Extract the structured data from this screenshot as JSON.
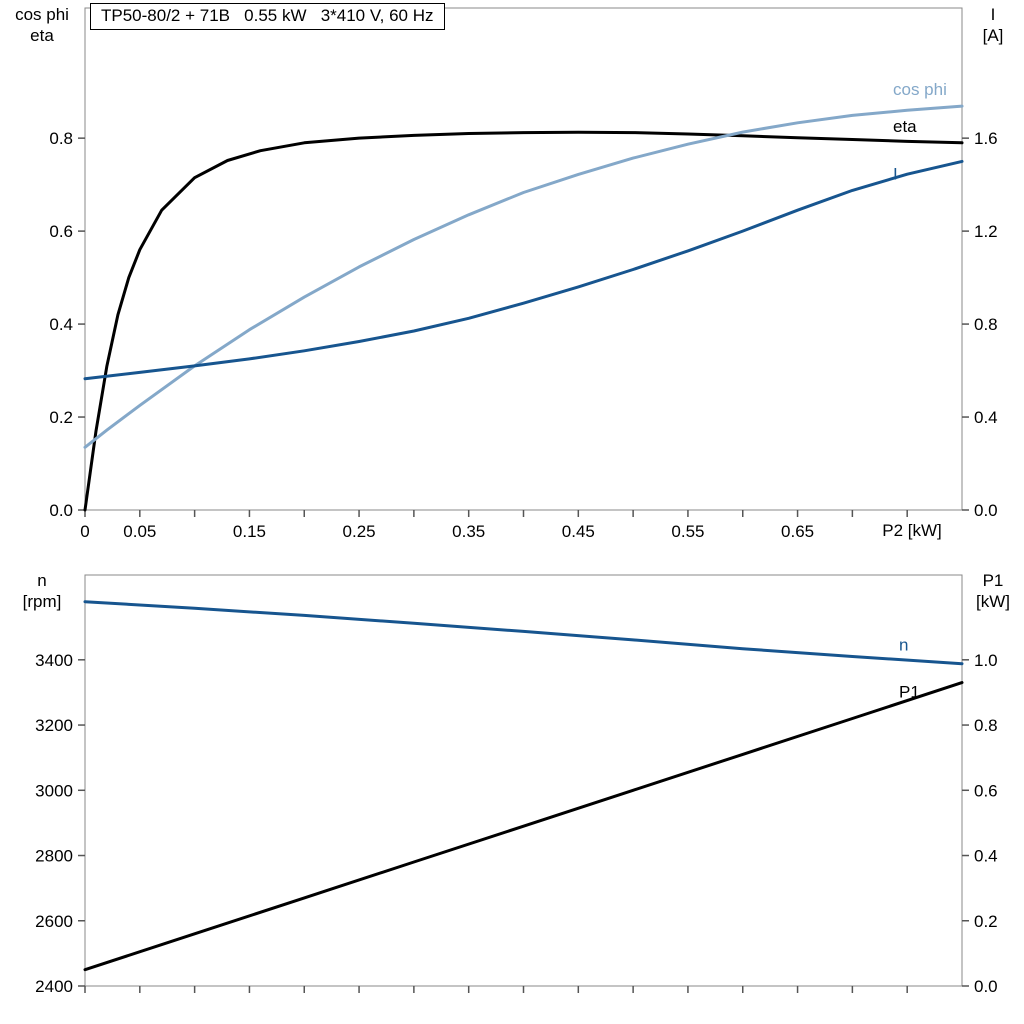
{
  "title_box": {
    "text": "TP50-80/2 + 71B   0.55 kW   3*410 V, 60 Hz"
  },
  "axis_labels": {
    "top_left": [
      "cos phi",
      "eta"
    ],
    "top_right": [
      "I",
      "[A]"
    ],
    "bottom_left": [
      "n",
      "[rpm]"
    ],
    "bottom_right": [
      "P1",
      "[kW]"
    ],
    "top_x_axis": "P2 [kW]"
  },
  "colors": {
    "black": "#000000",
    "dark_blue": "#17558f",
    "light_blue": "#84a8c9",
    "axis": "#888888",
    "tick": "#555555",
    "text": "#000000",
    "background": "#ffffff"
  },
  "chart_data": [
    {
      "type": "line",
      "title": "TP50-80/2 + 71B   0.55 kW   3*410 V, 60 Hz",
      "x_axis": {
        "label": "P2 [kW]",
        "min": 0,
        "max": 0.8,
        "tick_values": [
          0,
          0.05,
          0.1,
          0.15,
          0.2,
          0.25,
          0.3,
          0.35,
          0.4,
          0.45,
          0.5,
          0.55,
          0.6,
          0.65,
          0.7,
          0.75
        ],
        "tick_labels": [
          {
            "value": 0,
            "label": "0"
          },
          {
            "value": 0.05,
            "label": "0.05"
          },
          {
            "value": 0.15,
            "label": "0.15"
          },
          {
            "value": 0.25,
            "label": "0.25"
          },
          {
            "value": 0.35,
            "label": "0.35"
          },
          {
            "value": 0.45,
            "label": "0.45"
          },
          {
            "value": 0.55,
            "label": "0.55"
          },
          {
            "value": 0.65,
            "label": "0.65"
          }
        ]
      },
      "left_axis": {
        "label": "cos phi / eta",
        "min": 0,
        "max": 1.08,
        "tick_labels": [
          {
            "value": 0.0,
            "label": "0.0"
          },
          {
            "value": 0.2,
            "label": "0.2"
          },
          {
            "value": 0.4,
            "label": "0.4"
          },
          {
            "value": 0.6,
            "label": "0.6"
          },
          {
            "value": 0.8,
            "label": "0.8"
          }
        ]
      },
      "right_axis": {
        "label": "I [A]",
        "min": 0,
        "max": 2.16,
        "tick_labels": [
          {
            "value": 0.0,
            "label": "0.0"
          },
          {
            "value": 0.4,
            "label": "0.4"
          },
          {
            "value": 0.8,
            "label": "0.8"
          },
          {
            "value": 1.2,
            "label": "1.2"
          },
          {
            "value": 1.6,
            "label": "1.6"
          }
        ]
      },
      "series": [
        {
          "name": "eta",
          "axis": "left",
          "color": "#000000",
          "x": [
            0,
            0.01,
            0.02,
            0.03,
            0.04,
            0.05,
            0.07,
            0.1,
            0.13,
            0.16,
            0.2,
            0.25,
            0.3,
            0.35,
            0.4,
            0.45,
            0.5,
            0.55,
            0.6,
            0.65,
            0.7,
            0.75,
            0.8
          ],
          "y": [
            0,
            0.17,
            0.31,
            0.42,
            0.5,
            0.56,
            0.645,
            0.715,
            0.752,
            0.773,
            0.79,
            0.8,
            0.806,
            0.81,
            0.812,
            0.8125,
            0.812,
            0.809,
            0.805,
            0.801,
            0.797,
            0.793,
            0.79
          ]
        },
        {
          "name": "cos phi",
          "axis": "left",
          "color": "#84a8c9",
          "x": [
            0,
            0.02,
            0.05,
            0.1,
            0.15,
            0.2,
            0.25,
            0.3,
            0.35,
            0.4,
            0.45,
            0.5,
            0.55,
            0.6,
            0.65,
            0.7,
            0.75,
            0.8
          ],
          "y": [
            0.135,
            0.172,
            0.225,
            0.31,
            0.388,
            0.458,
            0.523,
            0.582,
            0.635,
            0.683,
            0.722,
            0.757,
            0.787,
            0.813,
            0.833,
            0.849,
            0.86,
            0.869
          ]
        },
        {
          "name": "I",
          "axis": "right",
          "color": "#17558f",
          "x": [
            0,
            0.05,
            0.1,
            0.15,
            0.2,
            0.25,
            0.3,
            0.35,
            0.4,
            0.45,
            0.5,
            0.55,
            0.6,
            0.65,
            0.7,
            0.75,
            0.8
          ],
          "y": [
            0.565,
            0.592,
            0.62,
            0.65,
            0.685,
            0.725,
            0.77,
            0.825,
            0.89,
            0.96,
            1.035,
            1.115,
            1.2,
            1.29,
            1.375,
            1.445,
            1.5
          ]
        }
      ]
    },
    {
      "type": "line",
      "title": "",
      "x_axis": {
        "label": "",
        "min": 0,
        "max": 0.8,
        "tick_values": [
          0,
          0.05,
          0.1,
          0.15,
          0.2,
          0.25,
          0.3,
          0.35,
          0.4,
          0.45,
          0.5,
          0.55,
          0.6,
          0.65,
          0.7,
          0.75
        ],
        "tick_labels": []
      },
      "left_axis": {
        "label": "n [rpm]",
        "min": 2400,
        "max": 3660,
        "tick_labels": [
          {
            "value": 2400,
            "label": "2400"
          },
          {
            "value": 2600,
            "label": "2600"
          },
          {
            "value": 2800,
            "label": "2800"
          },
          {
            "value": 3000,
            "label": "3000"
          },
          {
            "value": 3200,
            "label": "3200"
          },
          {
            "value": 3400,
            "label": "3400"
          }
        ]
      },
      "right_axis": {
        "label": "P1 [kW]",
        "min": 0,
        "max": 1.26,
        "tick_labels": [
          {
            "value": 0.0,
            "label": "0.0"
          },
          {
            "value": 0.2,
            "label": "0.2"
          },
          {
            "value": 0.4,
            "label": "0.4"
          },
          {
            "value": 0.6,
            "label": "0.6"
          },
          {
            "value": 0.8,
            "label": "0.8"
          },
          {
            "value": 1.0,
            "label": "1.0"
          }
        ]
      },
      "series": [
        {
          "name": "n",
          "axis": "left",
          "color": "#17558f",
          "x": [
            0,
            0.1,
            0.2,
            0.3,
            0.4,
            0.5,
            0.6,
            0.7,
            0.8
          ],
          "y": [
            3578,
            3558,
            3536,
            3512,
            3487,
            3461,
            3434,
            3410,
            3388
          ]
        },
        {
          "name": "P1",
          "axis": "right",
          "color": "#000000",
          "x": [
            0,
            0.1,
            0.2,
            0.3,
            0.4,
            0.5,
            0.6,
            0.7,
            0.8
          ],
          "y": [
            0.05,
            0.16,
            0.27,
            0.38,
            0.49,
            0.6,
            0.71,
            0.82,
            0.93
          ]
        }
      ]
    }
  ]
}
